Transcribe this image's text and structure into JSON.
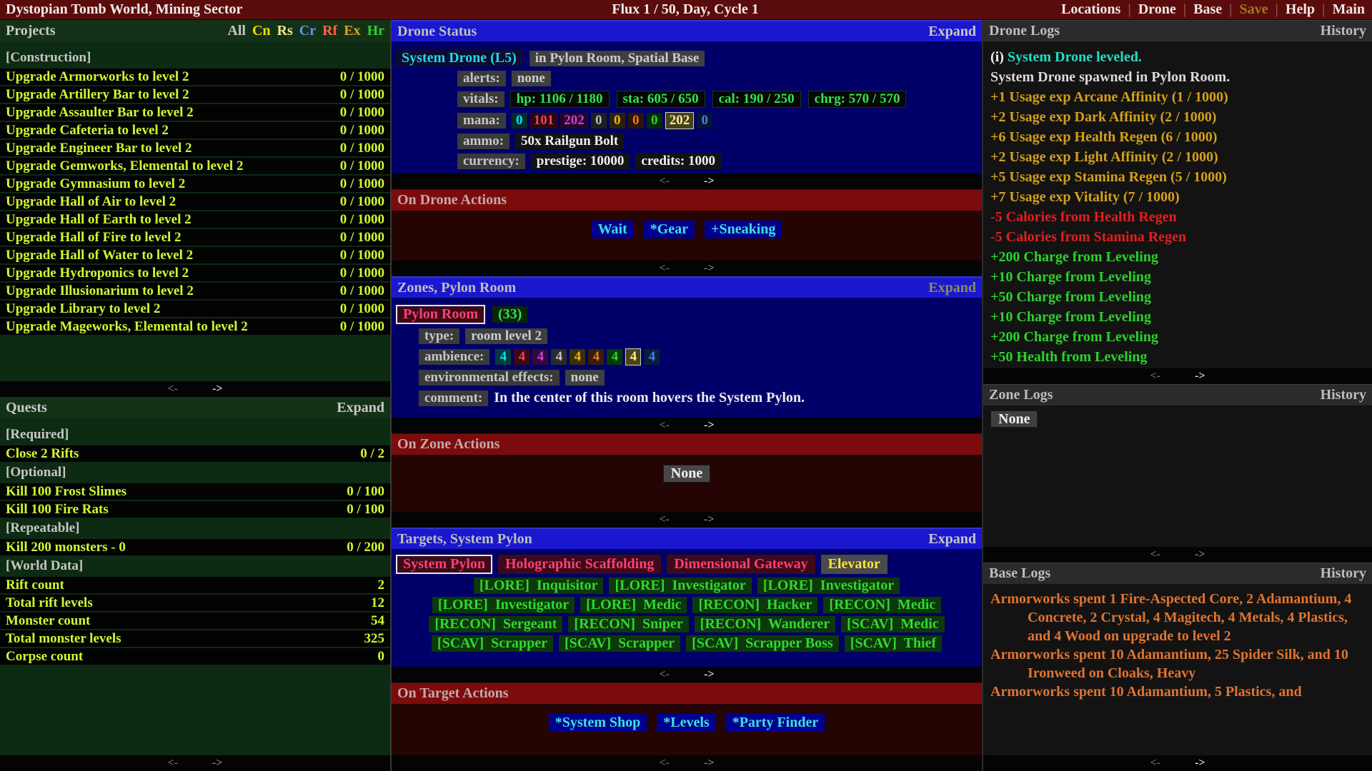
{
  "top_bar": {
    "left_title": "Dystopian Tomb World, Mining Sector",
    "center_title": "Flux 1 / 50, Day, Cycle 1",
    "menu": [
      {
        "label": "Locations",
        "color": "#F0E6E6"
      },
      {
        "label": "Drone",
        "color": "#F0E6E6"
      },
      {
        "label": "Base",
        "color": "#F0E6E6"
      },
      {
        "label": "Save",
        "color": "#9C7C1E"
      },
      {
        "label": "Help",
        "color": "#F0E6E6"
      },
      {
        "label": "Main",
        "color": "#F0E6E6"
      }
    ]
  },
  "ui": {
    "expand_label": "Expand",
    "history_label": "History",
    "pager_prev": "<-",
    "pager_next": "->",
    "menu_separator": "|"
  },
  "projects": {
    "title": "Projects",
    "filters": [
      {
        "label": "All",
        "color": "#C8C8C8"
      },
      {
        "label": "Cn",
        "color": "#FFD700"
      },
      {
        "label": "Rs",
        "color": "#F0E68C"
      },
      {
        "label": "Cr",
        "color": "#6495ED"
      },
      {
        "label": "Rf",
        "color": "#FF6347"
      },
      {
        "label": "Ex",
        "color": "#DAA520"
      },
      {
        "label": "Hr",
        "color": "#32CD32"
      }
    ],
    "sections": [
      {
        "header": "[Construction]",
        "items": [
          {
            "label": "Upgrade Armorworks to level 2",
            "value": "0 / 1000"
          },
          {
            "label": "Upgrade Artillery Bar to level 2",
            "value": "0 / 1000"
          },
          {
            "label": "Upgrade Assaulter Bar to level 2",
            "value": "0 / 1000"
          },
          {
            "label": "Upgrade Cafeteria to level 2",
            "value": "0 / 1000"
          },
          {
            "label": "Upgrade Engineer Bar to level 2",
            "value": "0 / 1000"
          },
          {
            "label": "Upgrade Gemworks, Elemental to level 2",
            "value": "0 / 1000"
          },
          {
            "label": "Upgrade Gymnasium to level 2",
            "value": "0 / 1000"
          },
          {
            "label": "Upgrade Hall of Air to level 2",
            "value": "0 / 1000"
          },
          {
            "label": "Upgrade Hall of Earth to level 2",
            "value": "0 / 1000"
          },
          {
            "label": "Upgrade Hall of Fire to level 2",
            "value": "0 / 1000"
          },
          {
            "label": "Upgrade Hall of Water to level 2",
            "value": "0 / 1000"
          },
          {
            "label": "Upgrade Hydroponics to level 2",
            "value": "0 / 1000"
          },
          {
            "label": "Upgrade Illusionarium to level 2",
            "value": "0 / 1000"
          },
          {
            "label": "Upgrade Library to level 2",
            "value": "0 / 1000"
          },
          {
            "label": "Upgrade Mageworks, Elemental to level 2",
            "value": "0 / 1000"
          }
        ]
      }
    ]
  },
  "quests": {
    "title": "Quests",
    "sections": [
      {
        "header": "[Required]",
        "items": [
          {
            "label": "Close 2 Rifts",
            "value": "0 / 2"
          }
        ]
      },
      {
        "header": "[Optional]",
        "items": [
          {
            "label": "Kill 100 Frost Slimes",
            "value": "0 / 100"
          },
          {
            "label": "Kill 100 Fire Rats",
            "value": "0 / 100"
          }
        ]
      },
      {
        "header": "[Repeatable]",
        "items": [
          {
            "label": "Kill 200 monsters - 0",
            "value": "0 / 200"
          }
        ]
      },
      {
        "header": "[World Data]",
        "items": [
          {
            "label": "Rift count",
            "value": "2"
          },
          {
            "label": "Total rift levels",
            "value": "12"
          },
          {
            "label": "Monster count",
            "value": "54"
          },
          {
            "label": "Total monster levels",
            "value": "325"
          },
          {
            "label": "Corpse count",
            "value": "0"
          }
        ]
      }
    ]
  },
  "drone_status": {
    "title": "Drone Status",
    "name": "System Drone (L5)",
    "location": "in Pylon Room, Spatial Base",
    "alerts_label": "alerts:",
    "alerts_value": "none",
    "vitals_label": "vitals:",
    "vitals": [
      "hp: 1106 / 1180",
      "sta: 605 / 650",
      "cal: 190 / 250",
      "chrg: 570 / 570"
    ],
    "mana_label": "mana:",
    "mana": [
      {
        "v": "0",
        "fg": "#00E5EE",
        "bg": "#062a2e"
      },
      {
        "v": "101",
        "fg": "#F04060",
        "bg": "#2e060e"
      },
      {
        "v": "202",
        "fg": "#D040D0",
        "bg": "#26062a"
      },
      {
        "v": "0",
        "fg": "#B8B8B8",
        "bg": "#1e1e1e"
      },
      {
        "v": "0",
        "fg": "#E8B020",
        "bg": "#2a2206"
      },
      {
        "v": "0",
        "fg": "#E87828",
        "bg": "#2a1506"
      },
      {
        "v": "0",
        "fg": "#28D828",
        "bg": "#062a06"
      },
      {
        "v": "202",
        "fg": "#F5EE9A",
        "bg": "#46411a",
        "hl": true
      },
      {
        "v": "0",
        "fg": "#4880E8",
        "bg": "#061530"
      }
    ],
    "ammo_label": "ammo:",
    "ammo_value": "50x Railgun Bolt",
    "currency_label": "currency:",
    "currency": [
      "prestige: 10000",
      "credits: 1000"
    ]
  },
  "drone_actions": {
    "title": "On Drone Actions",
    "buttons": [
      "Wait",
      "*Gear",
      "+Sneaking"
    ]
  },
  "zones": {
    "title": "Zones, Pylon Room",
    "room_name": "Pylon Room",
    "room_count": "(33)",
    "type_label": "type:",
    "type_value": "room level 2",
    "ambience_label": "ambience:",
    "ambience": [
      {
        "v": "4",
        "fg": "#00E5EE",
        "bg": "#073a3e"
      },
      {
        "v": "4",
        "fg": "#F04060",
        "bg": "#3e0813"
      },
      {
        "v": "4",
        "fg": "#D040D0",
        "bg": "#330838"
      },
      {
        "v": "4",
        "fg": "#C0C0C0",
        "bg": "#2a2a2a"
      },
      {
        "v": "4",
        "fg": "#E8B020",
        "bg": "#3a2f08"
      },
      {
        "v": "4",
        "fg": "#E87828",
        "bg": "#3a1e08"
      },
      {
        "v": "4",
        "fg": "#28D828",
        "bg": "#083a08"
      },
      {
        "v": "4",
        "fg": "#F5EE9A",
        "bg": "#4a4418",
        "hl": true
      },
      {
        "v": "4",
        "fg": "#4880E8",
        "bg": "#081e40"
      }
    ],
    "env_label": "environmental effects:",
    "env_value": "none",
    "comment_label": "comment:",
    "comment_value": "In the center of this room hovers the System Pylon."
  },
  "zone_actions": {
    "title": "On Zone Actions",
    "none_label": "None"
  },
  "targets": {
    "title": "Targets, System Pylon",
    "chips": [
      {
        "label": "System Pylon",
        "style": "selected"
      },
      {
        "label": "Holographic Scaffolding",
        "style": "normal"
      },
      {
        "label": "Dimensional Gateway",
        "style": "normal"
      },
      {
        "label": "Elevator",
        "style": "special"
      }
    ],
    "npcs": [
      "[LORE]  Inquisitor",
      "[LORE]  Investigator",
      "[LORE]  Investigator",
      "[LORE]  Investigator",
      "[LORE]  Medic",
      "[RECON]  Hacker",
      "[RECON]  Medic",
      "[RECON]  Sergeant",
      "[RECON]  Sniper",
      "[RECON]  Wanderer",
      "[SCAV]  Medic",
      "[SCAV]  Scrapper",
      "[SCAV]  Scrapper",
      "[SCAV]  Scrapper Boss",
      "[SCAV]  Thief"
    ]
  },
  "target_actions": {
    "title": "On Target Actions",
    "buttons": [
      "*System Shop",
      "*Levels",
      "*Party Finder"
    ]
  },
  "drone_logs": {
    "title": "Drone Logs",
    "entries": [
      {
        "prefix": "(i) ",
        "text": "System Drone leveled.",
        "color": "#1FE0C0"
      },
      {
        "text": "System Drone spawned in Pylon Room.",
        "color": "#DADADA"
      },
      {
        "text": "+1 Usage exp Arcane Affinity (1 / 1000)",
        "color": "#D4A01B"
      },
      {
        "text": "+2 Usage exp Dark Affinity (2 / 1000)",
        "color": "#D4A01B"
      },
      {
        "text": "+6 Usage exp Health Regen (6 / 1000)",
        "color": "#D4A01B"
      },
      {
        "text": "+2 Usage exp Light Affinity (2 / 1000)",
        "color": "#D4A01B"
      },
      {
        "text": "+5 Usage exp Stamina Regen (5 / 1000)",
        "color": "#D4A01B"
      },
      {
        "text": "+7 Usage exp Vitality (7 / 1000)",
        "color": "#D4A01B"
      },
      {
        "text": "-5 Calories from Health Regen",
        "color": "#E41E1E"
      },
      {
        "text": "-5 Calories from Stamina Regen",
        "color": "#E41E1E"
      },
      {
        "text": "+200 Charge from Leveling",
        "color": "#2BD22B"
      },
      {
        "text": "+10 Charge from Leveling",
        "color": "#2BD22B"
      },
      {
        "text": "+50 Charge from Leveling",
        "color": "#2BD22B"
      },
      {
        "text": "+10 Charge from Leveling",
        "color": "#2BD22B"
      },
      {
        "text": "+200 Charge from Leveling",
        "color": "#2BD22B"
      },
      {
        "text": "+50 Health from Leveling",
        "color": "#2BD22B"
      }
    ]
  },
  "zone_logs": {
    "title": "Zone Logs",
    "none_label": "None"
  },
  "base_logs": {
    "title": "Base Logs",
    "text_color": "#E0742F",
    "entries": [
      "Armorworks spent 1 Fire-Aspected Core, 2 Adamantium, 4 Concrete, 2 Crystal, 4 Magitech, 4 Metals, 4 Plastics, and 4 Wood on upgrade to level 2",
      "Armorworks spent 10 Adamantium, 25 Spider Silk, and 10 Ironweed on Cloaks, Heavy",
      "Armorworks spent 10 Adamantium, 5 Plastics, and"
    ]
  }
}
